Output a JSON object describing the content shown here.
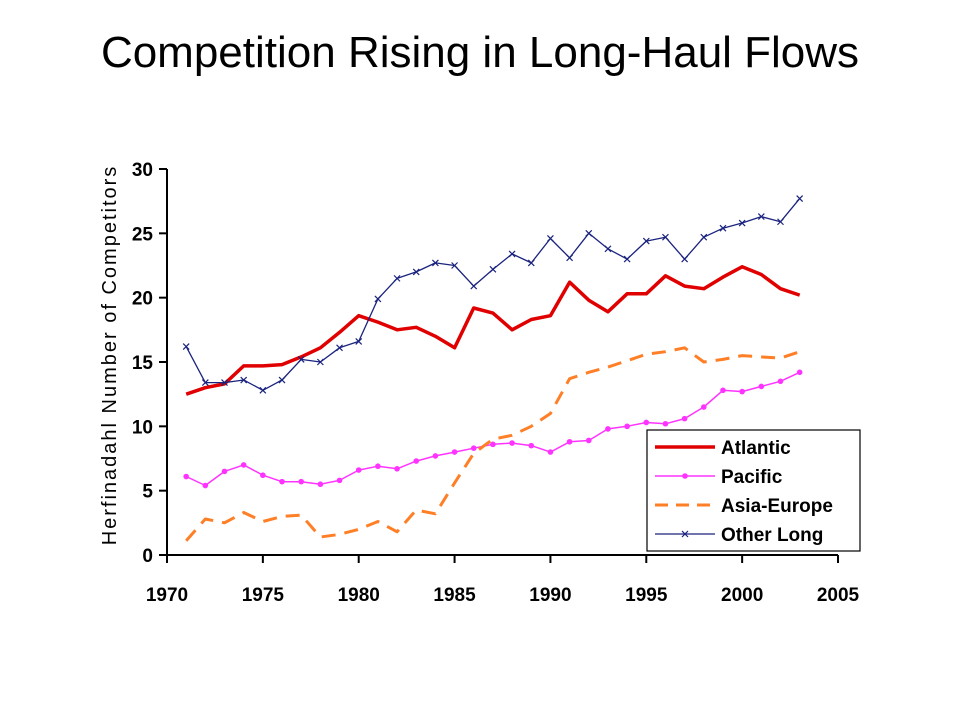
{
  "title": "Competition Rising in Long-Haul Flows",
  "chart_data": {
    "type": "line",
    "ylabel": "Herfinadahl Number of Competitors",
    "xlabel": "",
    "xlim": [
      1970,
      2005
    ],
    "ylim": [
      0,
      30
    ],
    "x_ticks": [
      1970,
      1975,
      1980,
      1985,
      1990,
      1995,
      2000,
      2005
    ],
    "y_ticks": [
      0,
      5,
      10,
      15,
      20,
      25,
      30
    ],
    "grid": false,
    "legend_position": "bottom-right",
    "x": [
      1971,
      1972,
      1973,
      1974,
      1975,
      1976,
      1977,
      1978,
      1979,
      1980,
      1981,
      1982,
      1983,
      1984,
      1985,
      1986,
      1987,
      1988,
      1989,
      1990,
      1991,
      1992,
      1993,
      1994,
      1995,
      1996,
      1997,
      1998,
      1999,
      2000,
      2001,
      2002,
      2003
    ],
    "series": [
      {
        "name": "Atlantic",
        "color": "#e00000",
        "style": "solid-thick",
        "values": [
          12.5,
          13.0,
          13.3,
          14.7,
          14.7,
          14.8,
          15.4,
          16.1,
          17.3,
          18.6,
          18.1,
          17.5,
          17.7,
          17.0,
          16.1,
          19.2,
          18.8,
          17.5,
          18.3,
          18.6,
          21.2,
          19.8,
          18.9,
          20.3,
          20.3,
          21.7,
          20.9,
          20.7,
          21.6,
          22.4,
          21.8,
          20.7,
          20.2
        ]
      },
      {
        "name": "Pacific",
        "color": "#ff33ff",
        "style": "solid-dots",
        "values": [
          6.1,
          5.4,
          6.5,
          7.0,
          6.2,
          5.7,
          5.7,
          5.5,
          5.8,
          6.6,
          6.9,
          6.7,
          7.3,
          7.7,
          8.0,
          8.3,
          8.6,
          8.7,
          8.5,
          8.0,
          8.8,
          8.9,
          9.8,
          10.0,
          10.3,
          10.2,
          10.6,
          11.5,
          12.8,
          12.7,
          13.1,
          13.5,
          14.2
        ]
      },
      {
        "name": "Asia-Europe",
        "color": "#ff7f27",
        "style": "dashed",
        "values": [
          1.1,
          2.8,
          2.5,
          3.3,
          2.6,
          3.0,
          3.1,
          1.4,
          1.6,
          2.0,
          2.6,
          1.8,
          3.5,
          3.2,
          5.6,
          7.9,
          9.0,
          9.3,
          10.0,
          11.0,
          13.7,
          14.2,
          14.6,
          15.1,
          15.6,
          15.8,
          16.1,
          15.0,
          15.2,
          15.5,
          15.4,
          15.3,
          15.8
        ]
      },
      {
        "name": "Other Long",
        "color": "#1a237e",
        "style": "thin-x",
        "values": [
          16.2,
          13.4,
          13.4,
          13.6,
          12.8,
          13.6,
          15.2,
          15.0,
          16.1,
          16.6,
          19.9,
          21.5,
          22.0,
          22.7,
          22.5,
          20.9,
          22.2,
          23.4,
          22.7,
          24.6,
          23.1,
          25.0,
          23.8,
          23.0,
          24.4,
          24.7,
          23.0,
          24.7,
          25.4,
          25.8,
          26.3,
          25.9,
          27.7
        ]
      }
    ]
  }
}
